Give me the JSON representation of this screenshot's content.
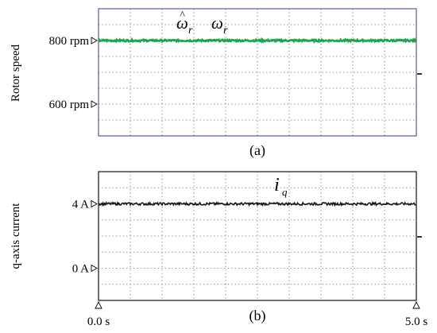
{
  "chart_data": [
    {
      "type": "line",
      "caption": "(a)",
      "ylabel": "Rotor speed",
      "y_unit": "rpm",
      "ylim": [
        500,
        900
      ],
      "y_ticks": [
        {
          "value": 800,
          "label": "800 rpm"
        },
        {
          "value": 600,
          "label": "600 rpm"
        }
      ],
      "xlim": [
        0.0,
        5.0
      ],
      "grid": true,
      "series": [
        {
          "symbol": "ω̂r",
          "sym_base": "ω",
          "sym_hat": "^",
          "sym_sub": "r",
          "color": "#1aa84b",
          "value": 800,
          "ripple": 3
        },
        {
          "symbol": "ωr",
          "sym_base": "ω",
          "sym_hat": "",
          "sym_sub": "r",
          "color": "#111111",
          "value": 800,
          "ripple": 2
        }
      ]
    },
    {
      "type": "line",
      "caption": "(b)",
      "ylabel": "q-axis current",
      "y_unit": "A",
      "ylim": [
        -2,
        6
      ],
      "y_ticks": [
        {
          "value": 4,
          "label": "4 A"
        },
        {
          "value": 0,
          "label": "0 A"
        }
      ],
      "xlim": [
        0.0,
        5.0
      ],
      "x_ticks": [
        {
          "value": 0.0,
          "label": "0.0 s"
        },
        {
          "value": 5.0,
          "label": "5.0 s"
        }
      ],
      "grid": true,
      "series": [
        {
          "symbol": "iq",
          "sym_base": "i",
          "sym_hat": "",
          "sym_sub": "q",
          "color": "#111111",
          "value": 4,
          "ripple": 0.08
        }
      ]
    }
  ]
}
